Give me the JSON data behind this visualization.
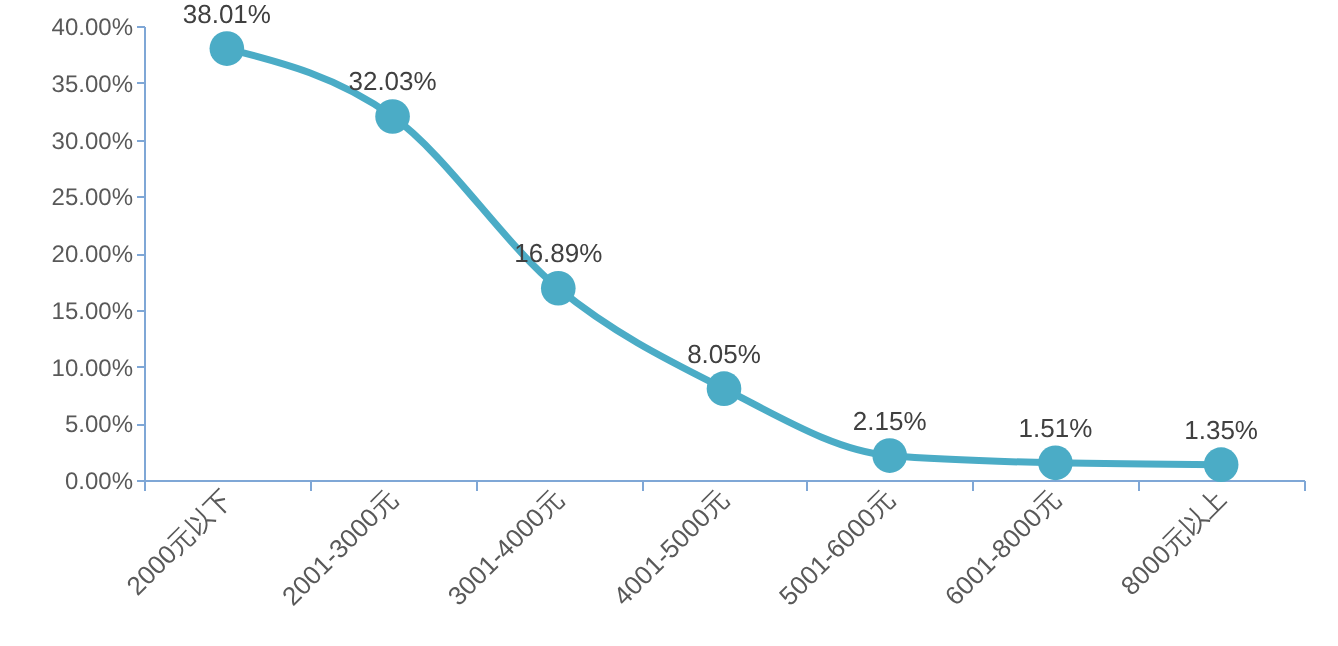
{
  "chart_data": {
    "type": "line",
    "categories": [
      "2000元以下",
      "2001-3000元",
      "3001-4000元",
      "4001-5000元",
      "5001-6000元",
      "6001-8000元",
      "8000元以上"
    ],
    "series": [
      {
        "color": "#4bacc6",
        "values": [
          38.01,
          32.03,
          16.89,
          8.05,
          2.15,
          1.51,
          1.35
        ],
        "value_labels": [
          "38.01%",
          "32.03%",
          "16.89%",
          "8.05%",
          "2.15%",
          "1.51%",
          "1.35%"
        ]
      }
    ],
    "ylim": [
      0,
      40
    ],
    "yticks": [
      {
        "value": 0,
        "label": "0.00%"
      },
      {
        "value": 5,
        "label": "5.00%"
      },
      {
        "value": 10,
        "label": "10.00%"
      },
      {
        "value": 15,
        "label": "15.00%"
      },
      {
        "value": 20,
        "label": "20.00%"
      },
      {
        "value": 25,
        "label": "25.00%"
      },
      {
        "value": 30,
        "label": "30.00%"
      },
      {
        "value": 35,
        "label": "35.00%"
      },
      {
        "value": 40,
        "label": "40.00%"
      }
    ],
    "marker": "circle",
    "line_style": "solid"
  }
}
